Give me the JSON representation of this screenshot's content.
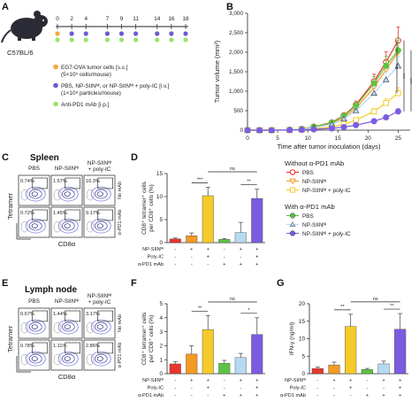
{
  "panels": {
    "A": "A",
    "B": "B",
    "C": "C",
    "D": "D",
    "E": "E",
    "F": "F",
    "G": "G"
  },
  "schedule": {
    "mouse_strain": "C57BL/6",
    "days": [
      "0",
      "2",
      "4",
      "7",
      "9",
      "11",
      "14",
      "16",
      "18"
    ],
    "legend": [
      {
        "color": "#f4a93a",
        "line1": "EG7-OVA tumor cells [s.c.]",
        "line2": "(5×10⁵ cells/mouse)"
      },
      {
        "color": "#6d5bd0",
        "line1": "PBS, NP-SIINᴺᴵ, or NP-SIINᴺᴵ + poly-IC [i.v.]",
        "line2": "(1×10⁸ particles/mouse)"
      },
      {
        "color": "#9be36b",
        "line1": "Anti-PD1 mAb [i.p.]",
        "line2": ""
      }
    ]
  },
  "colors": {
    "pbs": "#e8352d",
    "np": "#f59a22",
    "np_polyic": "#f4cb2a",
    "pd1_pbs": "#5cc342",
    "pd1_np": "#b6d9f2",
    "pd1_np_polyic": "#7b5ce0"
  },
  "legend_groups": {
    "without": "Without α-PD1 mAb",
    "with": "With α-PD1 mAb",
    "items_without": [
      "PBS",
      "NP-SIINᴺᴵ",
      "NP-SIINᴺᴵ + poly-IC"
    ],
    "items_with": [
      "PBS",
      "NP-SIINᴺᴵ",
      "NP-SIINᴺᴵ + poly-IC"
    ]
  },
  "flow": {
    "spleen_title": "Spleen",
    "ln_title": "Lymph node",
    "col_labels": [
      "PBS",
      "NP-SIINᴺᴵ",
      "NP-SIINᴺᴵ",
      "+ poly-IC"
    ],
    "row_labels": [
      "No mAb",
      "α-PD1 mAb"
    ],
    "ylabel": "Tetramer",
    "xlabel": "CD8α",
    "spleen_pcts": [
      "0.74%",
      "1.57%",
      "10.3%",
      "0.72%",
      "1.45%",
      "9.17%"
    ],
    "ln_pcts": [
      "0.67%",
      "1.44%",
      "3.17%",
      "0.78%",
      "1.11%",
      "2.86%"
    ]
  },
  "treatment_table": {
    "rows": [
      "NP-SIINᴺᴵ",
      "Poly-IC",
      "α-PD1 mAb"
    ],
    "np": [
      "-",
      "+",
      "+",
      "-",
      "+",
      "+"
    ],
    "polyic": [
      "-",
      "-",
      "+",
      "-",
      "-",
      "+"
    ],
    "pd1": [
      "-",
      "-",
      "-",
      "+",
      "+",
      "+"
    ]
  },
  "chart_data": [
    {
      "id": "B",
      "type": "line",
      "xlabel": "Time after tumor inoculation (days)",
      "ylabel": "Tumor volume (mm³)",
      "xlim": [
        0,
        27
      ],
      "ylim": [
        0,
        3000
      ],
      "xticks": [
        "0",
        "5",
        "10",
        "15",
        "20",
        "25"
      ],
      "yticks": [
        "0",
        "500",
        "1,000",
        "1,500",
        "2,000",
        "2,500",
        "3,000"
      ],
      "x": [
        0,
        2,
        4,
        7,
        9,
        11,
        14,
        16,
        18,
        21,
        23,
        25
      ],
      "series": [
        {
          "name": "PBS",
          "values": [
            0,
            0,
            0,
            10,
            30,
            90,
            200,
            380,
            650,
            1250,
            1750,
            2300
          ]
        },
        {
          "name": "NP-SIINᴺᴵ",
          "values": [
            0,
            0,
            0,
            10,
            25,
            70,
            170,
            330,
            560,
            1100,
            1550,
            2000
          ]
        },
        {
          "name": "NP-SIINᴺᴵ + poly-IC",
          "values": [
            0,
            0,
            0,
            5,
            15,
            40,
            80,
            150,
            260,
            480,
            700,
            950
          ]
        },
        {
          "name": "α-PD1 PBS",
          "values": [
            0,
            0,
            0,
            10,
            30,
            85,
            190,
            370,
            620,
            1200,
            1650,
            2050
          ]
        },
        {
          "name": "α-PD1 NP-SIINᴺᴵ",
          "values": [
            0,
            0,
            0,
            10,
            25,
            65,
            150,
            290,
            500,
            950,
            1300,
            1650
          ]
        },
        {
          "name": "α-PD1 NP-SIINᴺᴵ + poly-IC",
          "values": [
            0,
            0,
            0,
            3,
            8,
            20,
            45,
            80,
            130,
            230,
            330,
            480
          ]
        }
      ],
      "significance": [
        "***",
        "***",
        "***"
      ]
    },
    {
      "id": "D",
      "type": "bar",
      "ylabel": "CD8⁺ tetramer⁺ cells per CD8⁺ cells (%)",
      "ylim": [
        0,
        15
      ],
      "yticks": [
        "0",
        "5",
        "10",
        "15"
      ],
      "values": [
        0.8,
        1.5,
        10.2,
        0.7,
        2.2,
        9.6
      ],
      "errors": [
        0.2,
        0.6,
        1.8,
        0.2,
        2.2,
        2.0
      ],
      "significance": [
        {
          "from": 1,
          "to": 2,
          "label": "***"
        },
        {
          "from": 4,
          "to": 5,
          "label": "**"
        },
        {
          "from": 2,
          "to": 5,
          "label": "ns"
        }
      ]
    },
    {
      "id": "F",
      "type": "bar",
      "ylabel": "CD8⁺ tetramer⁺ cells per CD8⁺ cells (%)",
      "ylim": [
        0,
        5
      ],
      "yticks": [
        "0",
        "1",
        "2",
        "3",
        "4",
        "5"
      ],
      "values": [
        0.7,
        1.4,
        3.15,
        0.75,
        1.15,
        2.8
      ],
      "errors": [
        0.15,
        0.6,
        1.0,
        0.2,
        0.3,
        1.2
      ],
      "significance": [
        {
          "from": 1,
          "to": 2,
          "label": "**"
        },
        {
          "from": 4,
          "to": 5,
          "label": "*"
        },
        {
          "from": 2,
          "to": 5,
          "label": "ns"
        }
      ]
    },
    {
      "id": "G",
      "type": "bar",
      "ylabel": "IFN-γ (ng/ml)",
      "ylim": [
        0,
        20
      ],
      "yticks": [
        "0",
        "5",
        "10",
        "15",
        "20"
      ],
      "values": [
        1.5,
        2.5,
        13.5,
        1.2,
        2.8,
        12.7
      ],
      "errors": [
        0.4,
        0.8,
        3.5,
        0.3,
        0.8,
        4.5
      ],
      "significance": [
        {
          "from": 1,
          "to": 2,
          "label": "**"
        },
        {
          "from": 4,
          "to": 5,
          "label": "**"
        },
        {
          "from": 2,
          "to": 5,
          "label": "ns"
        }
      ]
    }
  ]
}
